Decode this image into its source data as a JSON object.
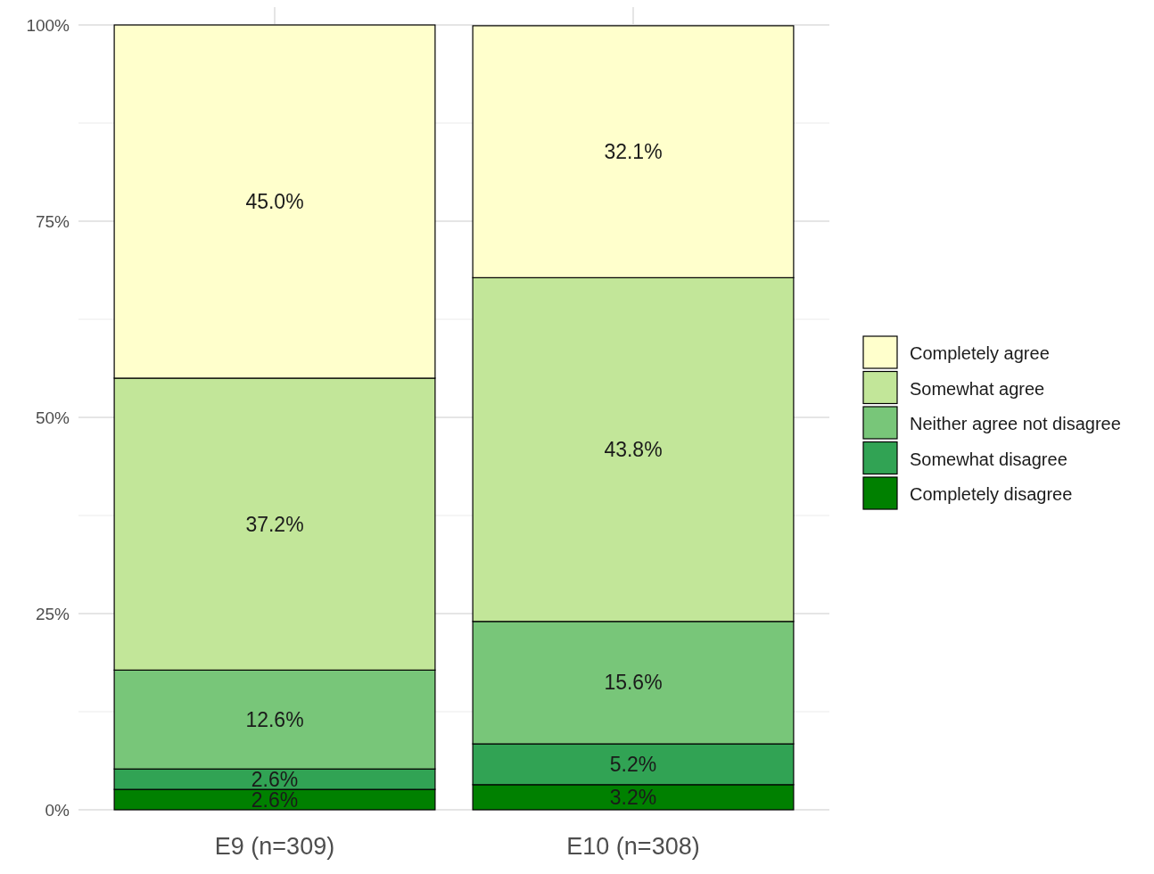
{
  "chart_data": {
    "type": "bar",
    "stacked": true,
    "categories": [
      "E9 (n=309)",
      "E10 (n=308)"
    ],
    "series": [
      {
        "name": "Completely disagree",
        "color": "#008000",
        "values": [
          2.6,
          3.2
        ],
        "value_labels": [
          "2.6%",
          "3.2%"
        ]
      },
      {
        "name": "Somewhat disagree",
        "color": "#31a354",
        "values": [
          2.6,
          5.2
        ],
        "value_labels": [
          "2.6%",
          "5.2%"
        ]
      },
      {
        "name": "Neither agree not disagree",
        "color": "#78c679",
        "values": [
          12.6,
          15.6
        ],
        "value_labels": [
          "12.6%",
          "15.6%"
        ]
      },
      {
        "name": "Somewhat agree",
        "color": "#c2e699",
        "values": [
          37.2,
          43.8
        ],
        "value_labels": [
          "37.2%",
          "43.8%"
        ]
      },
      {
        "name": "Completely agree",
        "color": "#ffffcc",
        "values": [
          45.0,
          32.1
        ],
        "value_labels": [
          "45.0%",
          "32.1%"
        ]
      }
    ],
    "ylim": [
      0,
      100
    ],
    "yticks": [
      {
        "value": 0,
        "label": "0%"
      },
      {
        "value": 25,
        "label": "25%"
      },
      {
        "value": 50,
        "label": "50%"
      },
      {
        "value": 75,
        "label": "75%"
      },
      {
        "value": 100,
        "label": "100%"
      }
    ],
    "grid": true,
    "legend": "right"
  }
}
